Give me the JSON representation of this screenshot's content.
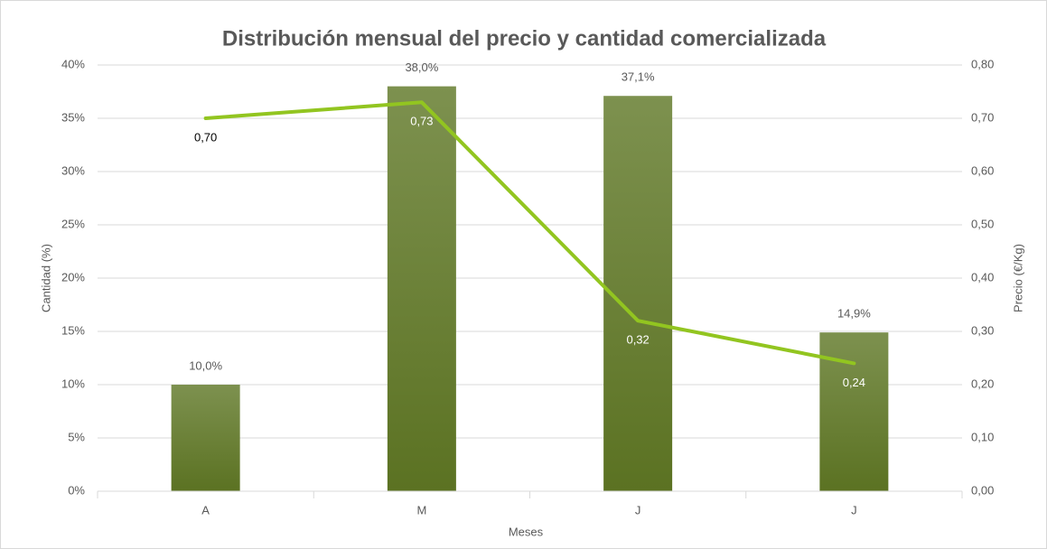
{
  "chart_data": {
    "type": "combo",
    "title": "Distribución mensual del precio y cantidad comercializada",
    "x_label": "Meses",
    "y_label": "Cantidad (%)",
    "y2_label": "Precio (€/Kg)",
    "categories": [
      "A",
      "M",
      "J",
      "J"
    ],
    "series": [
      {
        "type": "bar",
        "axis": "y",
        "color": "#6b8232",
        "values": [
          10.0,
          38.0,
          37.1,
          14.9
        ],
        "value_labels": [
          "10,0%",
          "38,0%",
          "37,1%",
          "14,9%"
        ]
      },
      {
        "type": "line",
        "axis": "y2",
        "color": "#92c520",
        "values": [
          0.7,
          0.73,
          0.32,
          0.24
        ],
        "value_labels": [
          "0,70",
          "0,73",
          "0,32",
          "0,24"
        ]
      }
    ],
    "ylim": [
      0,
      40
    ],
    "yticks": [
      {
        "value": 0,
        "label": "0%"
      },
      {
        "value": 5,
        "label": "5%"
      },
      {
        "value": 10,
        "label": "10%"
      },
      {
        "value": 15,
        "label": "15%"
      },
      {
        "value": 20,
        "label": "20%"
      },
      {
        "value": 25,
        "label": "25%"
      },
      {
        "value": 30,
        "label": "30%"
      },
      {
        "value": 35,
        "label": "35%"
      },
      {
        "value": 40,
        "label": "40%"
      }
    ],
    "y2lim": [
      0,
      0.8
    ],
    "y2ticks": [
      {
        "value": 0,
        "label": "0,00"
      },
      {
        "value": 0.1,
        "label": "0,10"
      },
      {
        "value": 0.2,
        "label": "0,20"
      },
      {
        "value": 0.3,
        "label": "0,30"
      },
      {
        "value": 0.4,
        "label": "0,40"
      },
      {
        "value": 0.5,
        "label": "0,50"
      },
      {
        "value": 0.6,
        "label": "0,60"
      },
      {
        "value": 0.7,
        "label": "0,70"
      },
      {
        "value": 0.8,
        "label": "0,80"
      }
    ],
    "grid": true
  }
}
